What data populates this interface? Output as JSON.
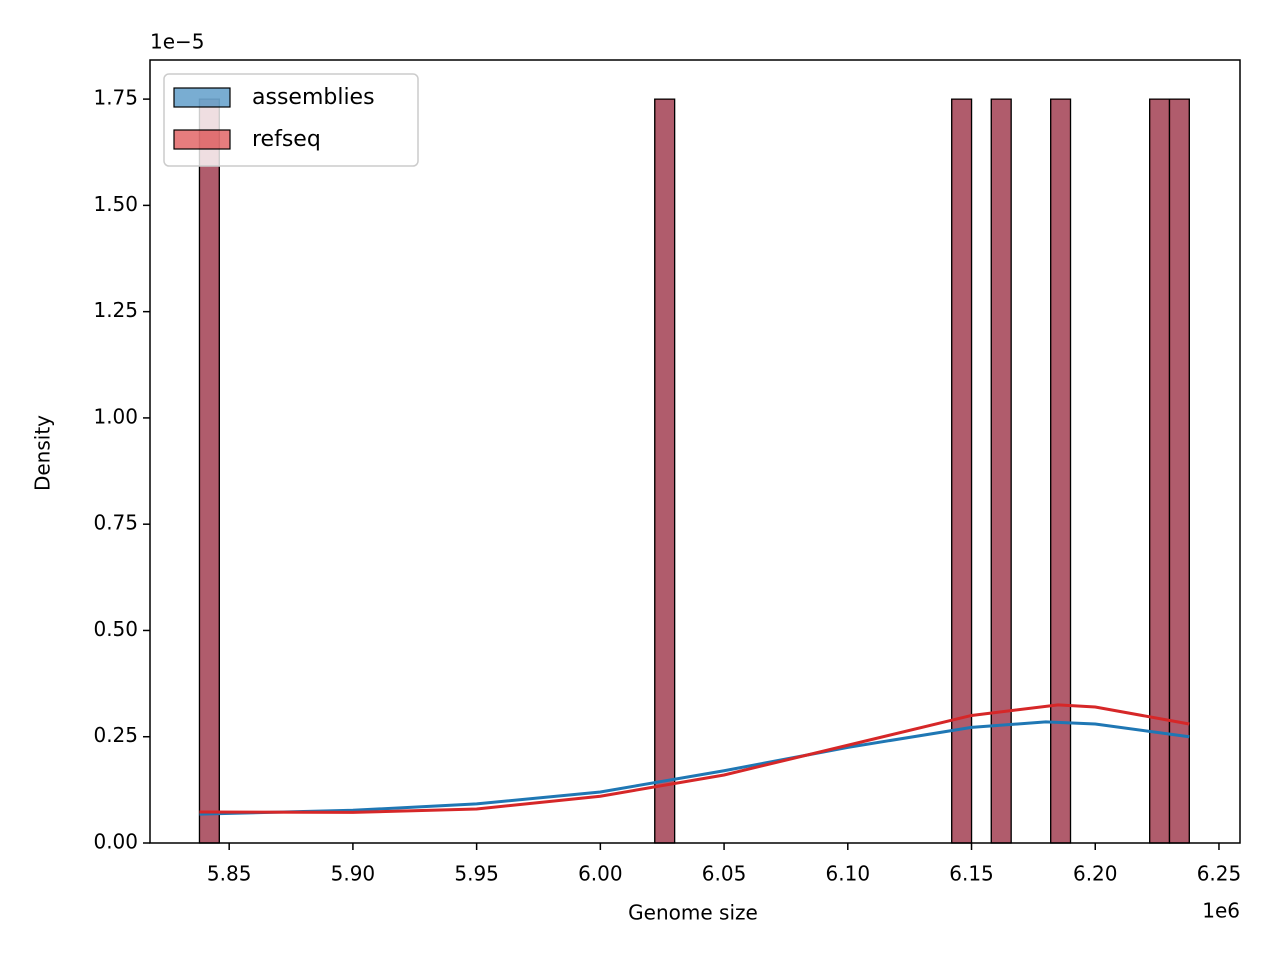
{
  "chart_data": {
    "type": "histogram",
    "x_label": "Genome size",
    "y_label": "Density",
    "x_offset_label": "1e6",
    "y_offset_label": "1e−5",
    "xlim": [
      5.818,
      6.2585
    ],
    "ylim": [
      0,
      1.842
    ],
    "xticks": [
      5.85,
      {
        "value": 5.9,
        "label": "5.90"
      },
      5.95,
      {
        "value": 6,
        "label": "6.00"
      },
      6.05,
      {
        "value": 6.1,
        "label": "6.10"
      },
      6.15,
      {
        "value": 6.2,
        "label": "6.20"
      },
      6.25
    ],
    "yticks": [
      {
        "value": 0,
        "label": "0.00"
      },
      0.25,
      {
        "value": 0.5,
        "label": "0.50"
      },
      0.75,
      {
        "value": 1,
        "label": "1.00"
      },
      1.25,
      {
        "value": 1.5,
        "label": "1.50"
      },
      1.75
    ],
    "legend": "upper left",
    "bins": [
      5.838,
      5.846,
      5.854,
      5.862,
      5.87,
      5.878,
      5.886,
      5.894,
      5.902,
      5.91,
      5.918,
      5.926,
      5.934,
      5.942,
      5.95,
      5.958,
      5.966,
      5.974,
      5.982,
      5.99,
      5.998,
      6.006,
      6.014,
      6.022,
      6.03,
      6.038,
      6.046,
      6.054,
      6.062,
      6.07,
      6.078,
      6.086,
      6.094,
      6.102,
      6.11,
      6.118,
      6.126,
      6.134,
      6.142,
      6.15,
      6.158,
      6.166,
      6.174,
      6.182,
      6.19,
      6.198,
      6.206,
      6.214,
      6.222,
      6.23,
      6.238
    ],
    "series": [
      {
        "name": "assemblies",
        "color": "#1f77b4",
        "values": [
          1.75,
          0,
          0,
          0,
          0,
          0,
          0,
          0,
          0,
          0,
          0,
          0,
          0,
          0,
          0,
          0,
          0,
          0,
          0,
          0,
          0,
          0,
          0,
          1.75,
          0,
          0,
          0,
          0,
          0,
          0,
          0,
          0,
          0,
          0,
          0,
          0,
          0,
          0,
          1.75,
          0,
          1.75,
          0,
          0,
          1.75,
          0,
          0,
          0,
          0,
          1.75,
          1.75
        ],
        "kde": {
          "x": [
            5.838,
            5.9,
            5.95,
            6.0,
            6.05,
            6.1,
            6.15,
            6.18,
            6.2,
            6.238
          ],
          "values": [
            0.068,
            0.077,
            0.092,
            0.12,
            0.17,
            0.225,
            0.272,
            0.285,
            0.28,
            0.25
          ]
        }
      },
      {
        "name": "refseq",
        "color": "#d62728",
        "values": [
          1.75,
          0,
          0,
          0,
          0,
          0,
          0,
          0,
          0,
          0,
          0,
          0,
          0,
          0,
          0,
          0,
          0,
          0,
          0,
          0,
          0,
          0,
          0,
          1.75,
          0,
          0,
          0,
          0,
          0,
          0,
          0,
          0,
          0,
          0,
          0,
          0,
          0,
          0,
          1.75,
          0,
          1.75,
          0,
          0,
          1.75,
          0,
          0,
          0,
          0,
          1.75,
          1.75
        ],
        "kde": {
          "x": [
            5.838,
            5.9,
            5.95,
            6.0,
            6.05,
            6.1,
            6.15,
            6.185,
            6.2,
            6.238
          ],
          "values": [
            0.073,
            0.072,
            0.08,
            0.11,
            0.16,
            0.23,
            0.3,
            0.325,
            0.32,
            0.28
          ]
        }
      }
    ]
  }
}
